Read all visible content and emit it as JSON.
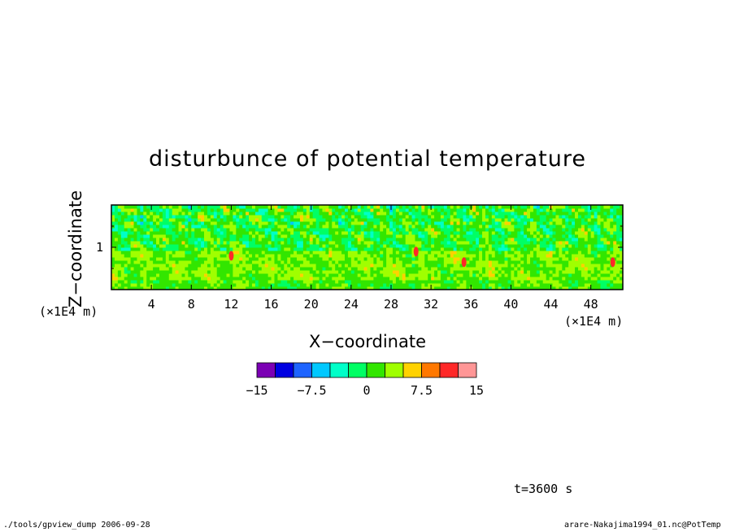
{
  "chart_data": {
    "type": "heatmap",
    "title": "disturbunce of potential temperature",
    "xlabel": "X−coordinate",
    "ylabel": "Z−coordinate",
    "x_unit": "(×1E4 m)",
    "y_unit": "(×1E4 m)",
    "xlim": [
      0,
      51.2
    ],
    "ylim": [
      0,
      2
    ],
    "x_ticks": [
      4,
      8,
      12,
      16,
      20,
      24,
      28,
      32,
      36,
      40,
      44,
      48
    ],
    "x_tick_labels": [
      "4",
      "8",
      "12",
      "16",
      "20",
      "24",
      "28",
      "32",
      "36",
      "40",
      "44",
      "48"
    ],
    "y_ticks": [
      1
    ],
    "y_tick_labels": [
      "1"
    ],
    "colorbar": {
      "levels": [
        -15,
        -12.5,
        -10,
        -7.5,
        -5,
        -2.5,
        0,
        2.5,
        5,
        7.5,
        10,
        12.5,
        15
      ],
      "tick_values": [
        -15,
        -7.5,
        0,
        7.5,
        15
      ],
      "tick_labels": [
        "−15",
        "−7.5",
        "0",
        "7.5",
        "15"
      ],
      "colors": [
        "#7b00b4",
        "#0000e1",
        "#1e64ff",
        "#00c8ff",
        "#00ffc8",
        "#00ff64",
        "#32e600",
        "#a0ff00",
        "#ffd200",
        "#ff7800",
        "#ff2828",
        "#ff9696"
      ]
    },
    "field_description_bands": [
      {
        "z_range": [
          0,
          0.95
        ],
        "dominant_value": 2.5
      },
      {
        "z_range": [
          0.95,
          2
        ],
        "dominant_value": 0
      }
    ]
  },
  "annotations": {
    "time": "t=3600 s",
    "footer_left": "./tools/gpview_dump  2006-09-28",
    "footer_right": "arare-Nakajima1994_01.nc@PotTemp"
  }
}
